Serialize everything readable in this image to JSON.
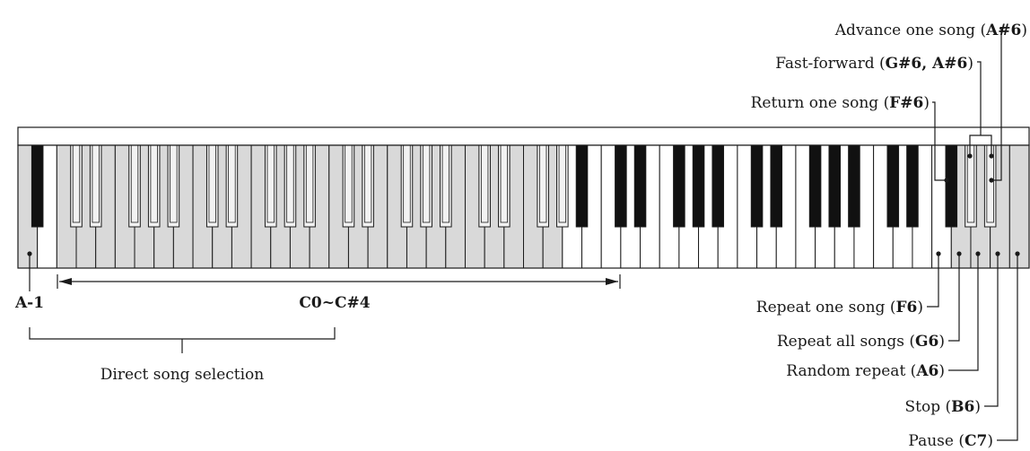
{
  "keyboard": {
    "total_white_keys": 52,
    "lowest_key": "A-1",
    "highlighted_white_keys": 26,
    "fill_highlight": "#d9d9d9",
    "fill_white": "#ffffff",
    "fill_black": "#111111",
    "fill_black_highlight": "#f2f2f2"
  },
  "labels": {
    "a_minus_1": "A-1",
    "range": "C0~C#4",
    "direct_song_selection": "Direct song selection",
    "return_one_song": {
      "pre": "Return one song (",
      "key": "F#6",
      "post": ")"
    },
    "fast_forward": {
      "pre": "Fast-forward (",
      "key": "G#6, A#6",
      "post": ")"
    },
    "advance_one_song": {
      "pre": "Advance one song (",
      "key": "A#6",
      "post": ")"
    },
    "repeat_one_song": {
      "pre": "Repeat one song (",
      "key": "F6",
      "post": ")"
    },
    "repeat_all_songs": {
      "pre": "Repeat all songs (",
      "key": "G6",
      "post": ")"
    },
    "random_repeat": {
      "pre": "Random repeat (",
      "key": "A6",
      "post": ")"
    },
    "stop": {
      "pre": "Stop (",
      "key": "B6",
      "post": ")"
    },
    "pause": {
      "pre": "Pause (",
      "key": "C7",
      "post": ")"
    }
  }
}
